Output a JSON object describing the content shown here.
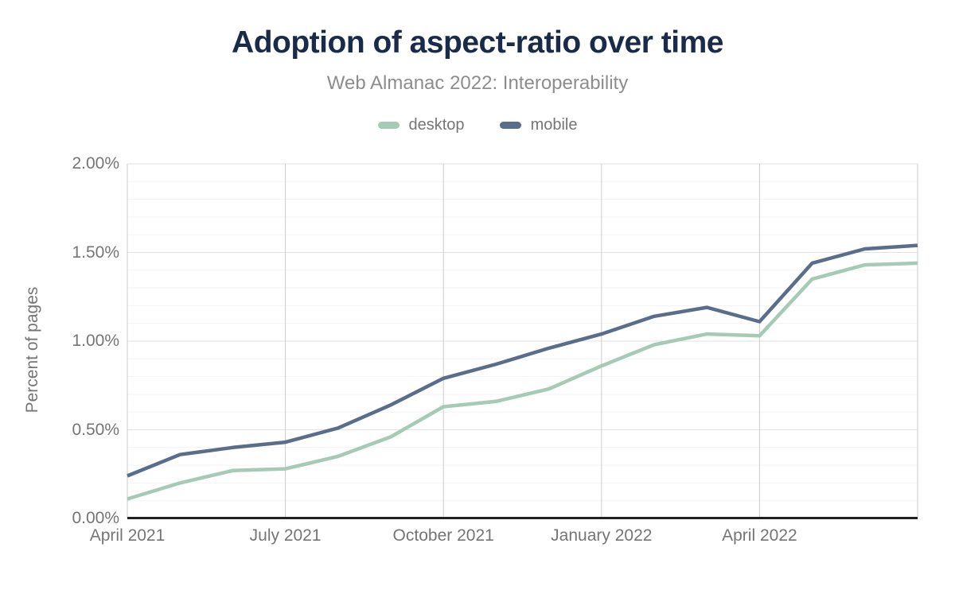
{
  "chart_data": {
    "type": "line",
    "title": "Adoption of aspect-ratio over time",
    "subtitle": "Web Almanac 2022: Interoperability",
    "xlabel": "",
    "ylabel": "Percent of pages",
    "unit": "%",
    "grid": "on",
    "legend_position": "top",
    "ylim": [
      0,
      2
    ],
    "minor_grid_step": 0.1,
    "major_grid_step": 0.5,
    "categories": [
      "April 2021",
      "May 2021",
      "June 2021",
      "July 2021",
      "August 2021",
      "September 2021",
      "October 2021",
      "November 2021",
      "December 2021",
      "January 2022",
      "February 2022",
      "March 2022",
      "April 2022",
      "May 2022",
      "June 2022",
      "July 2022"
    ],
    "series": [
      {
        "name": "desktop",
        "color": "#a5cab5",
        "values": [
          0.11,
          0.2,
          0.27,
          0.28,
          0.35,
          0.46,
          0.63,
          0.66,
          0.73,
          0.86,
          0.98,
          1.04,
          1.03,
          1.35,
          1.43,
          1.44
        ]
      },
      {
        "name": "mobile",
        "color": "#5a6e8c",
        "values": [
          0.24,
          0.36,
          0.4,
          0.43,
          0.51,
          0.64,
          0.79,
          0.87,
          0.96,
          1.04,
          1.14,
          1.19,
          1.11,
          1.44,
          1.52,
          1.54
        ]
      }
    ],
    "y_ticks": [
      {
        "value": 0.0,
        "label": "0.00%"
      },
      {
        "value": 0.5,
        "label": "0.50%"
      },
      {
        "value": 1.0,
        "label": "1.00%"
      },
      {
        "value": 1.5,
        "label": "1.50%"
      },
      {
        "value": 2.0,
        "label": "2.00%"
      }
    ],
    "x_ticks": [
      {
        "index": 0,
        "label": "April 2021"
      },
      {
        "index": 3,
        "label": "July 2021"
      },
      {
        "index": 6,
        "label": "October 2021"
      },
      {
        "index": 9,
        "label": "January 2022"
      },
      {
        "index": 12,
        "label": "April 2022"
      }
    ],
    "vertical_gridline_indices": [
      0,
      3,
      6,
      9,
      12,
      15
    ]
  }
}
